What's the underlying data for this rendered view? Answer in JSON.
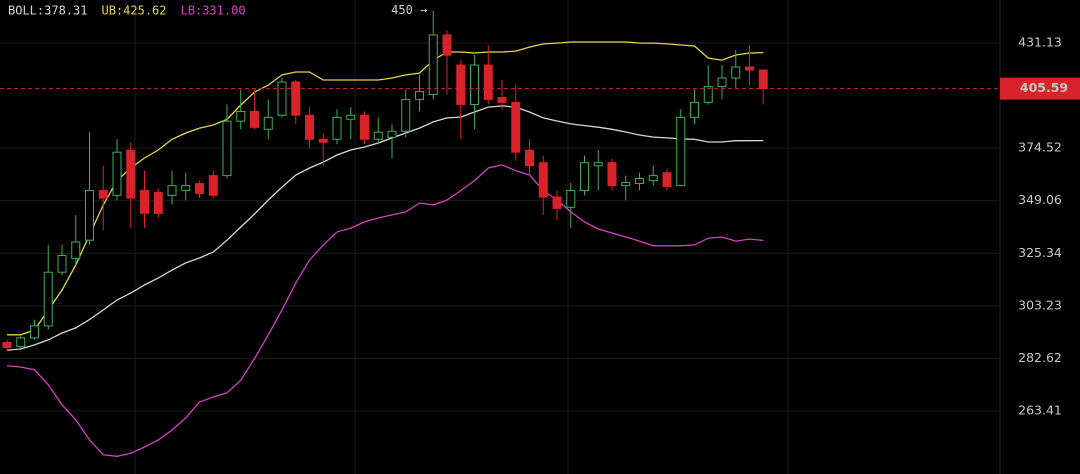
{
  "chart_data": {
    "type": "candlestick",
    "log_scale": true,
    "grid": true,
    "categories": [
      null,
      null,
      null,
      null,
      null,
      null,
      null,
      null,
      null,
      null,
      null,
      null,
      null,
      null,
      null,
      null,
      null,
      null,
      null,
      null,
      null,
      null,
      null,
      null,
      null,
      null,
      null,
      null,
      null,
      null,
      null,
      null,
      null,
      null,
      null,
      null,
      null,
      null,
      null,
      null,
      null,
      null,
      null,
      null,
      null,
      null,
      null,
      null,
      null,
      null,
      null,
      null,
      null,
      null,
      null,
      null
    ],
    "up_color": "#3fae5a",
    "down_color": "#d9232a",
    "open": [
      288.7,
      287.1,
      290.5,
      295.2,
      317.2,
      323.1,
      331.1,
      353.9,
      351.6,
      373.5,
      353.9,
      353.0,
      351.6,
      353.9,
      357.2,
      361.0,
      361.0,
      388.3,
      393.4,
      384.1,
      391.4,
      409.2,
      391.4,
      379.0,
      379.0,
      389.3,
      391.4,
      379.0,
      380.0,
      383.1,
      399.8,
      402.4,
      435.8,
      418.6,
      397.1,
      418.6,
      400.8,
      398.2,
      373.5,
      367.3,
      350.8,
      346.0,
      353.9,
      365.8,
      367.3,
      356.2,
      357.2,
      358.6,
      362.4,
      356.2,
      390.3,
      398.2,
      406.7,
      411.4,
      417.5,
      415.8
    ],
    "high": [
      289.8,
      291.7,
      297.7,
      329.1,
      329.1,
      342.4,
      382.6,
      365.8,
      379.0,
      377.5,
      363.4,
      354.9,
      363.4,
      362.4,
      358.6,
      363.4,
      397.1,
      405.1,
      405.1,
      399.8,
      411.4,
      410.3,
      395.6,
      381.6,
      394.5,
      395.6,
      393.4,
      390.3,
      386.7,
      405.1,
      413.1,
      450.3,
      438.7,
      421.4,
      424.2,
      430.0,
      410.3,
      407.8,
      379.0,
      370.8,
      353.9,
      357.7,
      370.8,
      373.5,
      369.3,
      361.0,
      362.4,
      365.8,
      364.4,
      394.5,
      405.1,
      418.6,
      418.6,
      427.1,
      430.0,
      415.8
    ],
    "low": [
      285.3,
      286.3,
      289.8,
      293.7,
      316.0,
      320.2,
      329.1,
      335.6,
      349.3,
      336.5,
      336.5,
      341.0,
      347.2,
      349.3,
      350.3,
      350.3,
      359.6,
      384.1,
      384.1,
      379.0,
      390.3,
      386.7,
      374.5,
      365.8,
      376.5,
      379.0,
      376.5,
      376.5,
      369.3,
      380.0,
      393.4,
      399.8,
      402.4,
      379.0,
      384.1,
      397.1,
      394.5,
      368.3,
      361.0,
      342.4,
      340.1,
      336.5,
      351.6,
      353.9,
      353.9,
      349.3,
      353.9,
      356.2,
      353.9,
      355.8,
      386.7,
      397.1,
      399.8,
      406.1,
      407.2,
      397.1
    ],
    "close": [
      286.8,
      290.5,
      295.2,
      317.2,
      324.4,
      330.3,
      353.9,
      350.3,
      372.5,
      350.3,
      343.2,
      343.2,
      356.2,
      356.2,
      352.5,
      351.6,
      388.3,
      393.4,
      385.1,
      390.3,
      409.2,
      391.4,
      379.0,
      377.5,
      390.3,
      391.4,
      379.0,
      382.6,
      383.1,
      399.8,
      404.0,
      435.8,
      424.2,
      397.1,
      418.6,
      399.8,
      398.2,
      372.5,
      365.8,
      350.8,
      345.5,
      353.9,
      367.3,
      367.3,
      356.2,
      357.7,
      359.6,
      361.0,
      355.8,
      390.3,
      398.2,
      406.7,
      411.4,
      417.5,
      415.8,
      405.59
    ],
    "series": [
      {
        "name": "BOLL:378.31",
        "color": "#d6d6d6",
        "values": [
          285.8,
          286.2,
          287.8,
          289.7,
          292.4,
          294.4,
          297.7,
          301.6,
          305.6,
          308.5,
          311.8,
          314.8,
          318.1,
          321.2,
          323.3,
          325.9,
          331.1,
          337.0,
          342.9,
          349.4,
          355.5,
          361.3,
          364.7,
          367.6,
          371.1,
          373.6,
          375.1,
          377.1,
          379.7,
          382.2,
          384.7,
          387.9,
          390.0,
          390.4,
          393.1,
          395.7,
          396.3,
          395.7,
          393.1,
          390.0,
          388.4,
          386.9,
          386.0,
          385.2,
          384.1,
          382.7,
          381.2,
          380.1,
          379.7,
          379.2,
          379.0,
          377.6,
          377.6,
          378.3,
          378.3,
          378.31
        ]
      },
      {
        "name": "UB:425.62",
        "color": "#e8d44d",
        "values": [
          291.7,
          291.7,
          293.6,
          301.6,
          309.7,
          320.3,
          333.4,
          347.1,
          358.6,
          364.7,
          369.6,
          373.6,
          379.0,
          382.2,
          384.7,
          386.3,
          389.3,
          396.8,
          403.7,
          407.5,
          413.1,
          414.7,
          414.7,
          410.3,
          410.3,
          410.3,
          410.3,
          410.3,
          411.4,
          413.1,
          414.1,
          421.4,
          426.0,
          426.0,
          425.4,
          426.0,
          426.0,
          426.5,
          428.8,
          430.6,
          431.1,
          431.7,
          431.7,
          431.7,
          431.7,
          431.7,
          431.1,
          431.1,
          430.6,
          430.0,
          429.4,
          422.5,
          421.4,
          424.3,
          425.4,
          425.62
        ]
      },
      {
        "name": "LB:331.00",
        "color": "#d63fc4",
        "values": [
          279.8,
          279.4,
          278.3,
          272.8,
          265.6,
          260.3,
          253.4,
          248.4,
          247.9,
          248.9,
          251.0,
          253.4,
          256.8,
          261.0,
          266.6,
          268.4,
          269.9,
          274.5,
          282.6,
          291.7,
          301.6,
          312.7,
          322.4,
          329.0,
          334.8,
          336.5,
          339.3,
          341.1,
          342.5,
          343.9,
          348.0,
          347.1,
          349.4,
          353.9,
          358.6,
          364.7,
          366.2,
          363.4,
          361.3,
          353.9,
          349.4,
          343.9,
          339.3,
          336.1,
          334.3,
          332.5,
          330.7,
          328.6,
          328.6,
          328.6,
          329.0,
          332.0,
          332.5,
          330.7,
          331.6,
          331.0
        ]
      }
    ],
    "annotations": [
      {
        "text": "450 →",
        "index": 31,
        "value": 450.3
      }
    ],
    "last_price": 405.59,
    "ylim": [
      242.1,
      456.7
    ],
    "yticks": [
      431.13,
      374.52,
      349.06,
      325.34,
      303.23,
      282.62,
      263.41
    ]
  }
}
